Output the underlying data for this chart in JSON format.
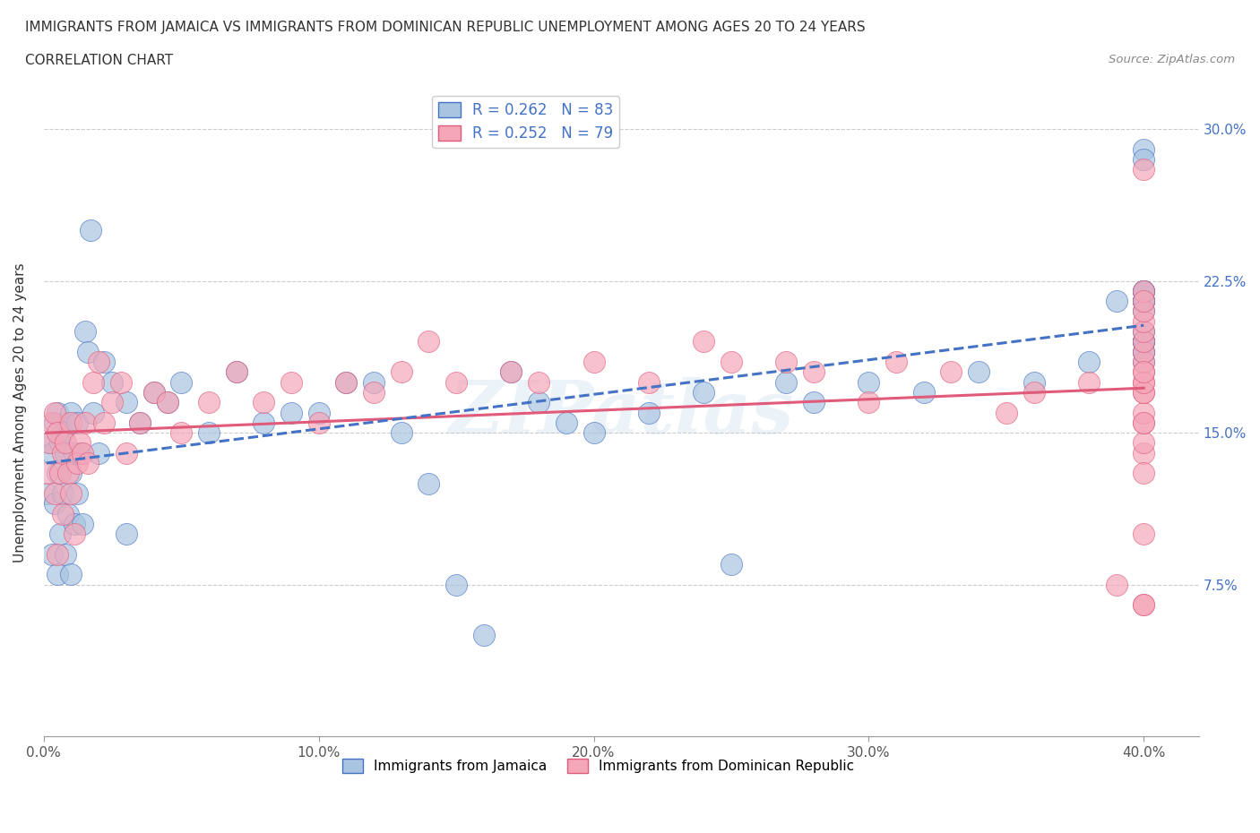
{
  "title_line1": "IMMIGRANTS FROM JAMAICA VS IMMIGRANTS FROM DOMINICAN REPUBLIC UNEMPLOYMENT AMONG AGES 20 TO 24 YEARS",
  "title_line2": "CORRELATION CHART",
  "source_text": "Source: ZipAtlas.com",
  "ylabel": "Unemployment Among Ages 20 to 24 years",
  "legend_label1": "Immigrants from Jamaica",
  "legend_label2": "Immigrants from Dominican Republic",
  "R1": 0.262,
  "N1": 83,
  "R2": 0.252,
  "N2": 79,
  "xlim": [
    0.0,
    0.42
  ],
  "ylim": [
    0.0,
    0.32
  ],
  "xticks": [
    0.0,
    0.1,
    0.2,
    0.3,
    0.4
  ],
  "xtick_labels": [
    "0.0%",
    "10.0%",
    "20.0%",
    "30.0%",
    "40.0%"
  ],
  "yticks": [
    0.0,
    0.075,
    0.15,
    0.225,
    0.3
  ],
  "ytick_labels_left": [
    "",
    "",
    "",
    "",
    ""
  ],
  "ytick_labels_right": [
    "",
    "7.5%",
    "15.0%",
    "22.5%",
    "30.0%"
  ],
  "color_blue": "#a8c4e0",
  "color_pink": "#f4a7b9",
  "line_color_blue": "#4472c4",
  "line_color_pink": "#e05a7a",
  "watermark": "ZIPatlas",
  "jamaica_x": [
    0.001,
    0.002,
    0.003,
    0.003,
    0.004,
    0.004,
    0.005,
    0.005,
    0.005,
    0.006,
    0.006,
    0.007,
    0.007,
    0.008,
    0.008,
    0.009,
    0.009,
    0.01,
    0.01,
    0.01,
    0.011,
    0.011,
    0.012,
    0.012,
    0.013,
    0.014,
    0.015,
    0.016,
    0.017,
    0.018,
    0.02,
    0.022,
    0.025,
    0.03,
    0.03,
    0.035,
    0.04,
    0.045,
    0.05,
    0.06,
    0.07,
    0.08,
    0.09,
    0.1,
    0.11,
    0.12,
    0.13,
    0.14,
    0.15,
    0.16,
    0.17,
    0.18,
    0.19,
    0.2,
    0.22,
    0.24,
    0.25,
    0.27,
    0.28,
    0.3,
    0.32,
    0.34,
    0.36,
    0.38,
    0.39,
    0.4,
    0.4,
    0.4,
    0.4,
    0.4,
    0.4,
    0.4,
    0.4,
    0.4,
    0.4,
    0.4,
    0.4,
    0.4,
    0.4,
    0.4,
    0.4,
    0.4,
    0.4
  ],
  "jamaica_y": [
    0.12,
    0.145,
    0.09,
    0.14,
    0.115,
    0.155,
    0.08,
    0.13,
    0.16,
    0.1,
    0.145,
    0.12,
    0.15,
    0.09,
    0.14,
    0.11,
    0.155,
    0.08,
    0.13,
    0.16,
    0.105,
    0.14,
    0.12,
    0.155,
    0.14,
    0.105,
    0.2,
    0.19,
    0.25,
    0.16,
    0.14,
    0.185,
    0.175,
    0.1,
    0.165,
    0.155,
    0.17,
    0.165,
    0.175,
    0.15,
    0.18,
    0.155,
    0.16,
    0.16,
    0.175,
    0.175,
    0.15,
    0.125,
    0.075,
    0.05,
    0.18,
    0.165,
    0.155,
    0.15,
    0.16,
    0.17,
    0.085,
    0.175,
    0.165,
    0.175,
    0.17,
    0.18,
    0.175,
    0.185,
    0.215,
    0.2,
    0.195,
    0.215,
    0.19,
    0.195,
    0.185,
    0.215,
    0.22,
    0.215,
    0.195,
    0.22,
    0.215,
    0.19,
    0.21,
    0.195,
    0.22,
    0.29,
    0.285
  ],
  "dominican_x": [
    0.001,
    0.002,
    0.003,
    0.004,
    0.004,
    0.005,
    0.005,
    0.006,
    0.007,
    0.007,
    0.008,
    0.009,
    0.01,
    0.01,
    0.011,
    0.012,
    0.013,
    0.014,
    0.015,
    0.016,
    0.018,
    0.02,
    0.022,
    0.025,
    0.028,
    0.03,
    0.035,
    0.04,
    0.045,
    0.05,
    0.06,
    0.07,
    0.08,
    0.09,
    0.1,
    0.11,
    0.12,
    0.13,
    0.14,
    0.15,
    0.17,
    0.18,
    0.2,
    0.22,
    0.24,
    0.25,
    0.27,
    0.28,
    0.3,
    0.31,
    0.33,
    0.35,
    0.36,
    0.38,
    0.39,
    0.4,
    0.4,
    0.4,
    0.4,
    0.4,
    0.4,
    0.4,
    0.4,
    0.4,
    0.4,
    0.4,
    0.4,
    0.4,
    0.4,
    0.4,
    0.4,
    0.4,
    0.4,
    0.4,
    0.4,
    0.4,
    0.4,
    0.4,
    0.4
  ],
  "dominican_y": [
    0.13,
    0.145,
    0.155,
    0.12,
    0.16,
    0.09,
    0.15,
    0.13,
    0.11,
    0.14,
    0.145,
    0.13,
    0.12,
    0.155,
    0.1,
    0.135,
    0.145,
    0.14,
    0.155,
    0.135,
    0.175,
    0.185,
    0.155,
    0.165,
    0.175,
    0.14,
    0.155,
    0.17,
    0.165,
    0.15,
    0.165,
    0.18,
    0.165,
    0.175,
    0.155,
    0.175,
    0.17,
    0.18,
    0.195,
    0.175,
    0.18,
    0.175,
    0.185,
    0.175,
    0.195,
    0.185,
    0.185,
    0.18,
    0.165,
    0.185,
    0.18,
    0.16,
    0.17,
    0.175,
    0.075,
    0.14,
    0.145,
    0.155,
    0.16,
    0.17,
    0.175,
    0.18,
    0.185,
    0.19,
    0.195,
    0.2,
    0.205,
    0.21,
    0.22,
    0.13,
    0.065,
    0.1,
    0.155,
    0.17,
    0.175,
    0.18,
    0.28,
    0.065,
    0.215
  ]
}
